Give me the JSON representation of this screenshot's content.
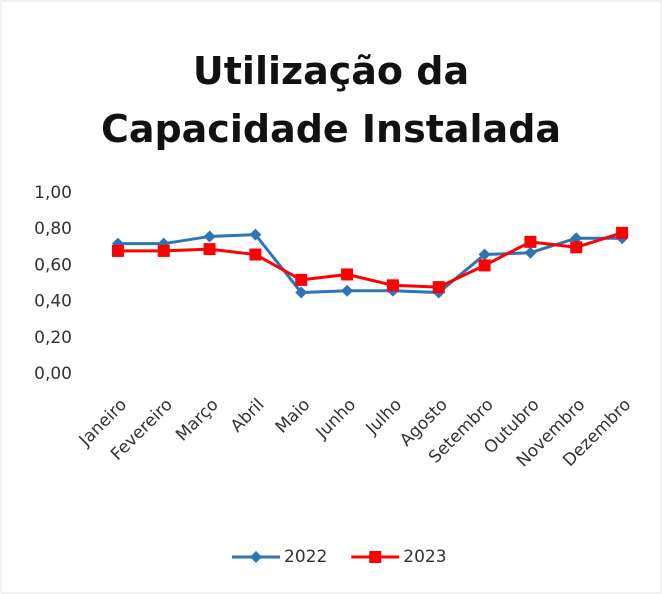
{
  "chart_data": {
    "type": "line",
    "title": "Utilização da Capacidade Instalada",
    "categories": [
      "Janeiro",
      "Fevereiro",
      "Março",
      "Abril",
      "Maio",
      "Junho",
      "Julho",
      "Agosto",
      "Setembro",
      "Outubro",
      "Novembro",
      "Dezembro"
    ],
    "series": [
      {
        "name": "2022",
        "color": "#2e75b6",
        "marker": "diamond",
        "values": [
          0.72,
          0.72,
          0.76,
          0.77,
          0.45,
          0.46,
          0.46,
          0.45,
          0.66,
          0.67,
          0.75,
          0.75
        ]
      },
      {
        "name": "2023",
        "color": "#ff0000",
        "marker": "square",
        "values": [
          0.68,
          0.68,
          0.69,
          0.66,
          0.52,
          0.55,
          0.49,
          0.48,
          0.6,
          0.73,
          0.7,
          0.78
        ]
      }
    ],
    "ylim": [
      0,
      1
    ],
    "yticks": [
      {
        "value": 0,
        "label": "0,00"
      },
      {
        "value": 0.2,
        "label": "0,20"
      },
      {
        "value": 0.4,
        "label": "0,40"
      },
      {
        "value": 0.6,
        "label": "0,60"
      },
      {
        "value": 0.8,
        "label": "0,80"
      },
      {
        "value": 1,
        "label": "1,00"
      }
    ],
    "grid": false,
    "legend": "bottom"
  }
}
